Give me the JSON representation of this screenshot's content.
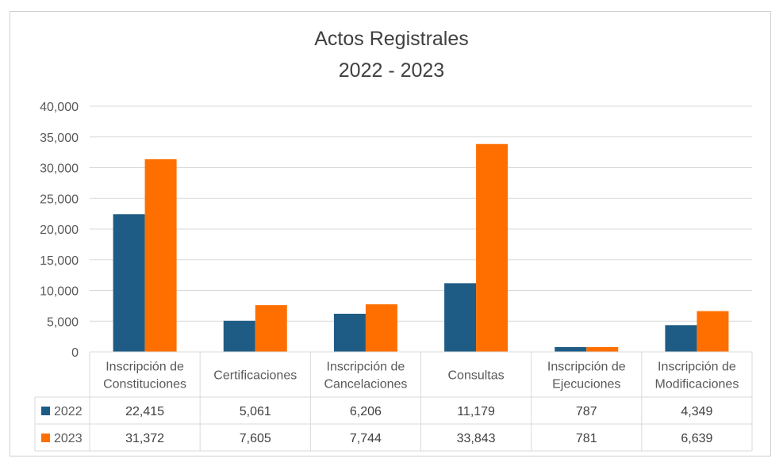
{
  "chart_data": {
    "type": "bar",
    "title": "Actos Registrales",
    "subtitle": "2022 - 2023",
    "categories": [
      [
        "Inscripción de",
        "Constituciones"
      ],
      [
        "Certificaciones"
      ],
      [
        "Inscripción de",
        "Cancelaciones"
      ],
      [
        "Consultas"
      ],
      [
        "Inscripción de",
        "Ejecuciones"
      ],
      [
        "Inscripción de",
        "Modificaciones"
      ]
    ],
    "series": [
      {
        "name": "2022",
        "color": "#1f5c85",
        "values": [
          22415,
          5061,
          6206,
          11179,
          787,
          4349
        ],
        "labels": [
          "22,415",
          "5,061",
          "6,206",
          "11,179",
          "787",
          "4,349"
        ]
      },
      {
        "name": "2023",
        "color": "#ff6f00",
        "values": [
          31372,
          7605,
          7744,
          33843,
          781,
          6639
        ],
        "labels": [
          "31,372",
          "7,605",
          "7,744",
          "33,843",
          "781",
          "6,639"
        ]
      }
    ],
    "ylim": [
      0,
      40000
    ],
    "yticks": [
      0,
      5000,
      10000,
      15000,
      20000,
      25000,
      30000,
      35000,
      40000
    ],
    "ytick_labels": [
      "0",
      "5,000",
      "10,000",
      "15,000",
      "20,000",
      "25,000",
      "30,000",
      "35,000",
      "40,000"
    ],
    "grid": true,
    "legend": "data-table"
  }
}
